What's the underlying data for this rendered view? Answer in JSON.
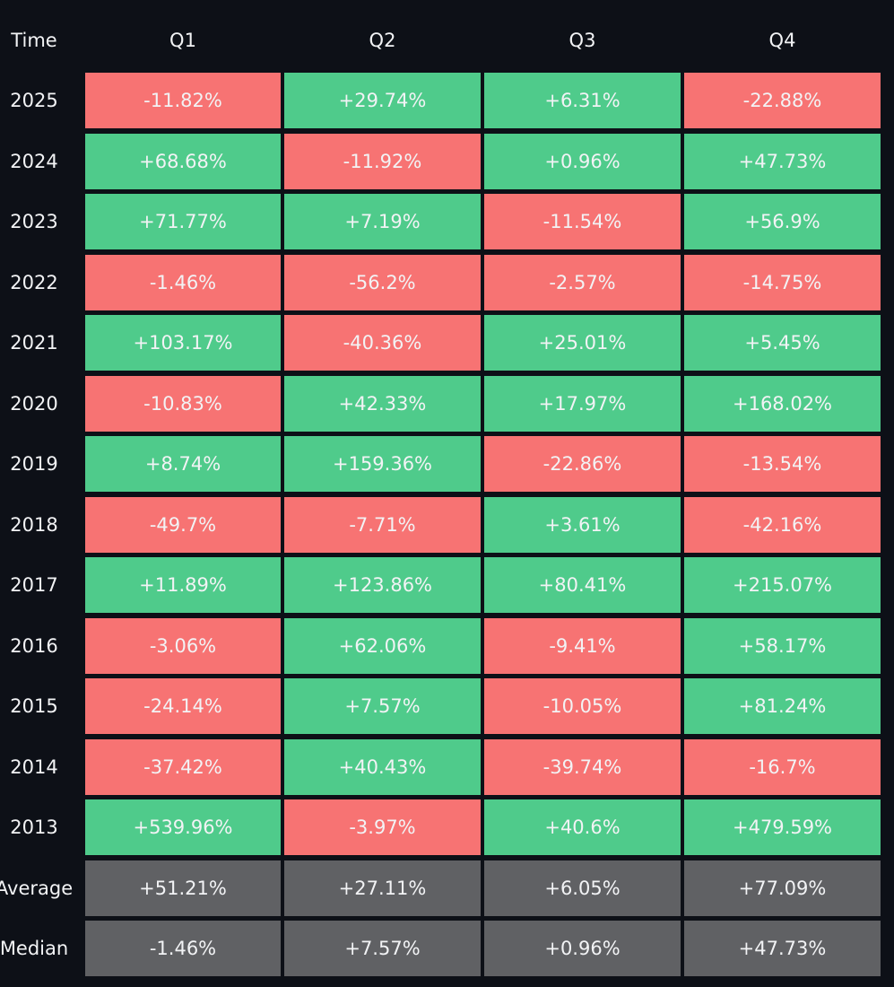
{
  "table": {
    "header": [
      "Time",
      "Q1",
      "Q2",
      "Q3",
      "Q4"
    ],
    "rows": [
      [
        "2025",
        "-11.82%",
        "+29.74%",
        "+6.31%",
        "-22.88%"
      ],
      [
        "2024",
        "+68.68%",
        "-11.92%",
        "+0.96%",
        "+47.73%"
      ],
      [
        "2023",
        "+71.77%",
        "+7.19%",
        "-11.54%",
        "+56.9%"
      ],
      [
        "2022",
        "-1.46%",
        "-56.2%",
        "-2.57%",
        "-14.75%"
      ],
      [
        "2021",
        "+103.17%",
        "-40.36%",
        "+25.01%",
        "+5.45%"
      ],
      [
        "2020",
        "-10.83%",
        "+42.33%",
        "+17.97%",
        "+168.02%"
      ],
      [
        "2019",
        "+8.74%",
        "+159.36%",
        "-22.86%",
        "-13.54%"
      ],
      [
        "2018",
        "-49.7%",
        "-7.71%",
        "+3.61%",
        "-42.16%"
      ],
      [
        "2017",
        "+11.89%",
        "+123.86%",
        "+80.41%",
        "+215.07%"
      ],
      [
        "2016",
        "-3.06%",
        "+62.06%",
        "-9.41%",
        "+58.17%"
      ],
      [
        "2015",
        "-24.14%",
        "+7.57%",
        "-10.05%",
        "+81.24%"
      ],
      [
        "2014",
        "-37.42%",
        "+40.43%",
        "-39.74%",
        "-16.7%"
      ],
      [
        "2013",
        "+539.96%",
        "-3.97%",
        "+40.6%",
        "+479.59%"
      ]
    ],
    "summary_rows": [
      [
        "Average",
        "+51.21%",
        "+27.11%",
        "+6.05%",
        "+77.09%"
      ],
      [
        "Median",
        "-1.46%",
        "+7.57%",
        "+0.96%",
        "+47.73%"
      ]
    ]
  }
}
